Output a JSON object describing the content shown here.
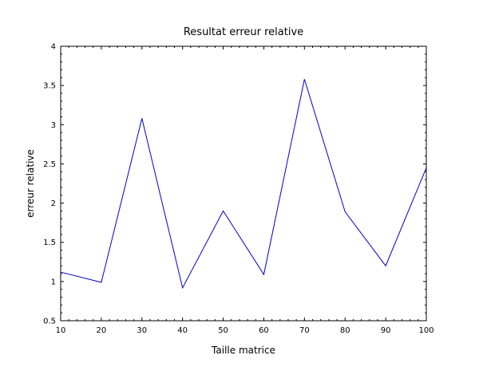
{
  "chart_data": {
    "type": "line",
    "title": "Resultat erreur relative",
    "xlabel": "Taille matrice",
    "ylabel": "erreur relative",
    "xlim": [
      10,
      100
    ],
    "ylim": [
      0.5,
      4
    ],
    "x_ticks": [
      "10",
      "20",
      "30",
      "40",
      "50",
      "60",
      "70",
      "80",
      "90",
      "100"
    ],
    "y_ticks": [
      "0.5",
      "1",
      "1.5",
      "2",
      "2.5",
      "3",
      "3.5",
      "4"
    ],
    "grid": false,
    "legend": "none",
    "series": [
      {
        "color": "#0000cc",
        "x": [
          10,
          20,
          30,
          40,
          50,
          60,
          70,
          80,
          90,
          100
        ],
        "y": [
          1.12,
          0.99,
          3.08,
          0.92,
          1.9,
          1.09,
          3.58,
          1.89,
          1.2,
          2.45
        ]
      }
    ]
  }
}
